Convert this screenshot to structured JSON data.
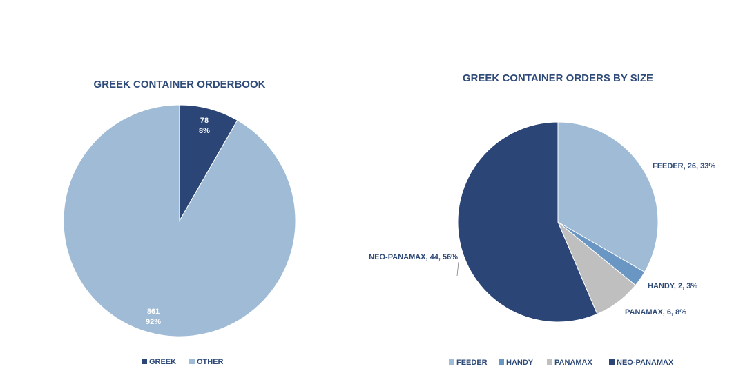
{
  "chart_data": [
    {
      "type": "pie",
      "title": "GREEK CONTAINER ORDERBOOK",
      "categories": [
        "GREEK",
        "OTHER"
      ],
      "values": [
        78,
        861
      ],
      "percent_labels": [
        "8%",
        "92%"
      ],
      "colors": [
        "#2b4576",
        "#9fbbd5"
      ],
      "legend_position": "bottom"
    },
    {
      "type": "pie",
      "title": "GREEK CONTAINER ORDERS BY SIZE",
      "categories": [
        "FEEDER",
        "HANDY",
        "PANAMAX",
        "NEO-PANAMAX"
      ],
      "values": [
        26,
        2,
        6,
        44
      ],
      "data_labels": [
        "FEEDER, 26, 33%",
        "HANDY, 2, 3%",
        "PANAMAX, 6, 8%",
        "NEO-PANAMAX, 44, 56%"
      ],
      "colors": [
        "#9fbbd5",
        "#6a96c3",
        "#bfbfbf",
        "#2b4576"
      ],
      "legend_position": "bottom"
    }
  ]
}
